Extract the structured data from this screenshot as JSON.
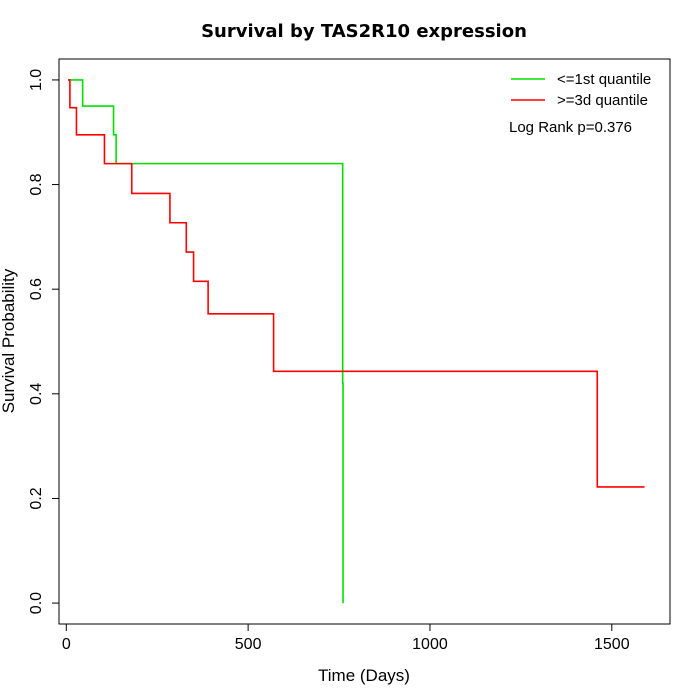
{
  "chart_data": {
    "type": "line",
    "title": "Survival by TAS2R10 expression",
    "xlabel": "Time (Days)",
    "ylabel": "Survival Probability",
    "xlim": [
      -20,
      1660
    ],
    "ylim": [
      -0.04,
      1.04
    ],
    "x_ticks": [
      0,
      500,
      1000,
      1500
    ],
    "y_ticks": [
      0.0,
      0.2,
      0.4,
      0.6,
      0.8,
      1.0
    ],
    "x_tick_labels": [
      "0",
      "500",
      "1000",
      "1500"
    ],
    "y_tick_labels": [
      "0.0",
      "0.2",
      "0.4",
      "0.6",
      "0.8",
      "1.0"
    ],
    "grid": false,
    "legend_position": "top-right",
    "annotation": "Log Rank p=0.376",
    "series": [
      {
        "name": "<=1st quantile",
        "color": "#00e000",
        "steps": [
          [
            5,
            1.0
          ],
          [
            45,
            0.95
          ],
          [
            130,
            0.895
          ],
          [
            137,
            0.84
          ],
          [
            760,
            0.42
          ],
          [
            761,
            0.0
          ]
        ]
      },
      {
        "name": ">=3d quantile",
        "color": "#ff0000",
        "steps": [
          [
            5,
            1.0
          ],
          [
            10,
            0.947
          ],
          [
            28,
            0.895
          ],
          [
            105,
            0.84
          ],
          [
            180,
            0.783
          ],
          [
            285,
            0.727
          ],
          [
            330,
            0.671
          ],
          [
            350,
            0.615
          ],
          [
            390,
            0.553
          ],
          [
            570,
            0.443
          ],
          [
            1460,
            0.222
          ],
          [
            1590,
            0.222
          ]
        ]
      }
    ]
  }
}
